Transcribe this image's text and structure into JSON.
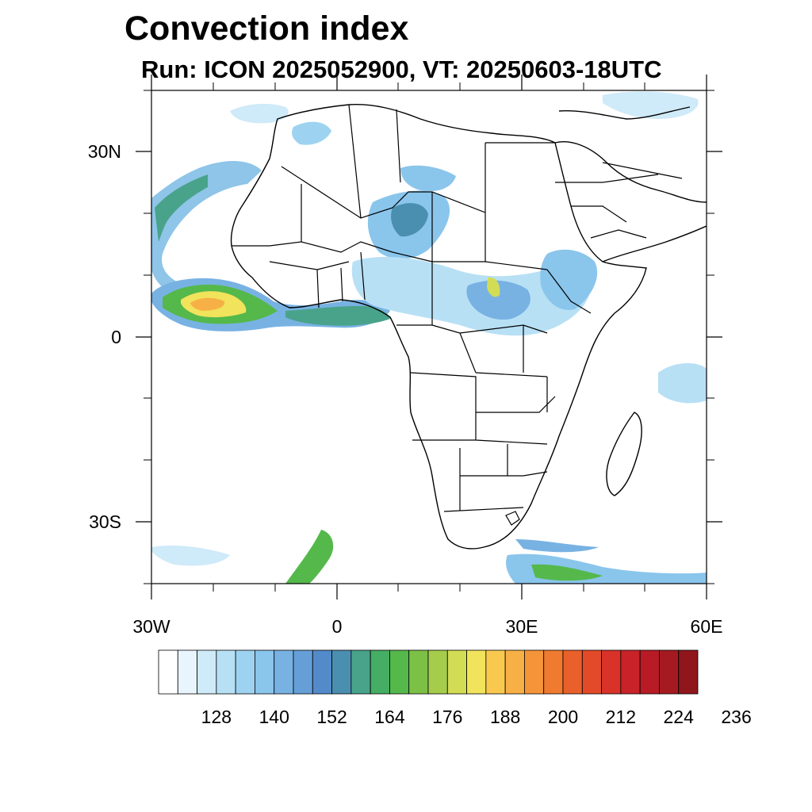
{
  "title": "Convection index",
  "subtitle": "Run: ICON 2025052900,  VT: 20250603-18UTC",
  "map": {
    "region": "Africa",
    "lon_range": [
      -30,
      60
    ],
    "lat_range": [
      -40,
      40
    ],
    "lat_ticks": [
      "30N",
      "0",
      "30S"
    ],
    "lon_ticks": [
      "30W",
      "0",
      "30E",
      "60E"
    ]
  },
  "colorbar": {
    "colors": [
      "#ffffff",
      "#e8f5fc",
      "#cfeaf8",
      "#b8e0f5",
      "#9dd3f1",
      "#8ac5ec",
      "#78b2e3",
      "#669fd8",
      "#538ac9",
      "#4a8fb0",
      "#48a38a",
      "#45ad64",
      "#55b84b",
      "#7dc046",
      "#a6cc4c",
      "#d2dd55",
      "#f1e35b",
      "#f9c94f",
      "#f7b046",
      "#f4953a",
      "#ef7a30",
      "#e9602b",
      "#e24a2a",
      "#d83229",
      "#c9232a",
      "#b81b25",
      "#a51a20",
      "#8f161b"
    ],
    "labels": [
      "128",
      "140",
      "152",
      "164",
      "176",
      "188",
      "200",
      "212",
      "224",
      "236"
    ]
  }
}
